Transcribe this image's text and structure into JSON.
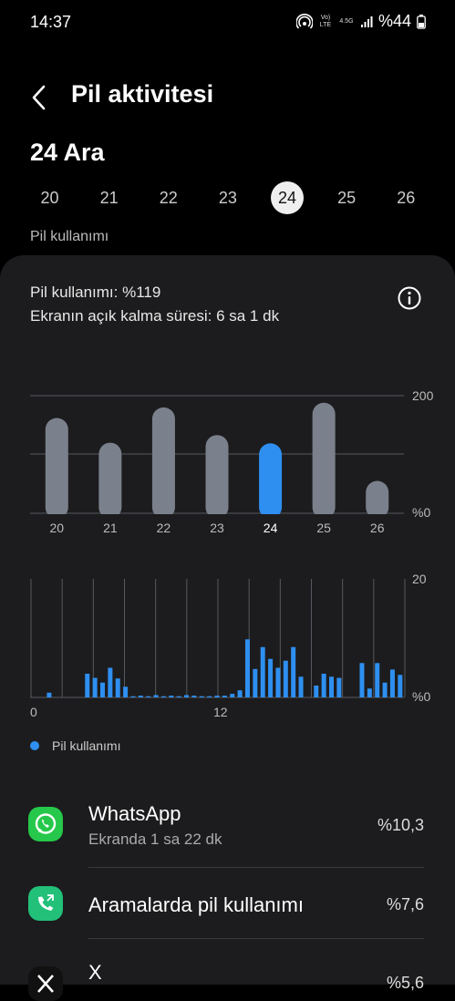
{
  "status_bar": {
    "time": "14:37",
    "volte": "Vo) LTE",
    "network": "4.5G",
    "battery": "%44"
  },
  "header": {
    "title": "Pil aktivitesi"
  },
  "date_title": "24 Ara",
  "days": [
    "20",
    "21",
    "22",
    "23",
    "24",
    "25",
    "26"
  ],
  "selected_day": "24",
  "section_label": "Pil kullanımı",
  "summary": {
    "usage": "Pil kullanımı: %119",
    "screen_time": "Ekranın açık kalma süresi: 6 sa 1 dk"
  },
  "chart_data": [
    {
      "type": "bar",
      "categories": [
        "20",
        "21",
        "22",
        "23",
        "24",
        "25",
        "26"
      ],
      "values": [
        162,
        120,
        180,
        133,
        119,
        188,
        55
      ],
      "highlight": "24",
      "ylim": [
        0,
        200
      ],
      "ytick_labels": [
        "200",
        "%0"
      ],
      "colors": {
        "bar": "#7a818c",
        "highlight": "#2e8ff0"
      }
    },
    {
      "type": "bar",
      "x_tick_labels": [
        "0",
        "12"
      ],
      "ytick_labels": [
        "20",
        "%0"
      ],
      "ylim": [
        0,
        20
      ],
      "values": [
        0,
        0,
        0.8,
        0,
        0,
        0,
        0,
        4,
        3.3,
        2.5,
        5,
        3.2,
        1.8,
        0.2,
        0.3,
        0.2,
        0.4,
        0.2,
        0.3,
        0.2,
        0.4,
        0.3,
        0.2,
        0.2,
        0.3,
        0.3,
        0.6,
        1.2,
        9.8,
        4.8,
        8.5,
        6.5,
        5,
        6.2,
        8.5,
        3.5,
        0,
        2,
        4,
        3.5,
        3.3,
        0,
        0,
        5.8,
        1.5,
        5.8,
        2.5,
        4.7,
        3.8
      ],
      "color": "#2e8ff0"
    }
  ],
  "legend": {
    "label": "Pil kullanımı",
    "color": "#2e8ff0"
  },
  "apps": [
    {
      "name": "WhatsApp",
      "sub": "Ekranda 1 sa 22 dk",
      "percent": "%10,3",
      "icon": "whatsapp-icon"
    },
    {
      "name": "Aramalarda pil kullanımı",
      "sub": "",
      "percent": "%7,6",
      "icon": "phone-call-icon"
    },
    {
      "name": "X",
      "sub": "",
      "percent": "%5,6",
      "icon": "x-icon"
    }
  ]
}
